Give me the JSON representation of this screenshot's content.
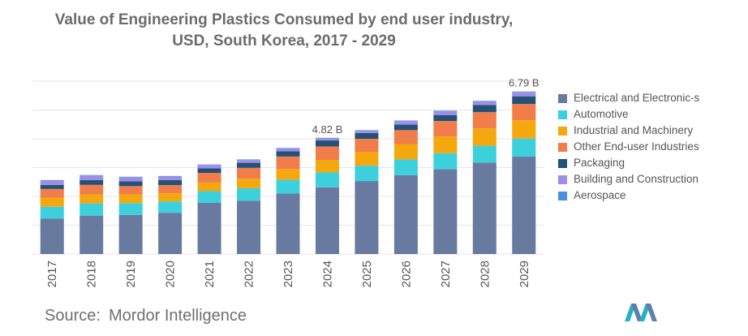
{
  "title_lines": [
    "Value of Engineering Plastics Consumed by end user industry,",
    "USD, South Korea, 2017 - 2029"
  ],
  "source": {
    "label": "Source:",
    "name": "Mordor Intelligence"
  },
  "colors": {
    "gridline": "#e6e6e6",
    "axis_text": "#555555",
    "annotation_text": "#555555"
  },
  "chart_data": {
    "type": "bar",
    "stacked": true,
    "title": "Value of Engineering Plastics Consumed by end user industry, USD, South Korea, 2017 - 2029",
    "xlabel": "",
    "ylabel": "",
    "ylim": [
      0,
      7.2
    ],
    "grid": true,
    "legend_position": "right",
    "categories": [
      "2017",
      "2018",
      "2019",
      "2020",
      "2021",
      "2022",
      "2023",
      "2024",
      "2025",
      "2026",
      "2027",
      "2028",
      "2029"
    ],
    "annotations": [
      {
        "category": "2024",
        "text": "4.82 B",
        "value": 4.82
      },
      {
        "category": "2029",
        "text": "6.79 B",
        "value": 6.79
      }
    ],
    "series": [
      {
        "name": "Electrical and Electronic-s",
        "color": "#687aa0",
        "values": [
          1.48,
          1.6,
          1.63,
          1.72,
          2.14,
          2.22,
          2.52,
          2.78,
          3.04,
          3.28,
          3.53,
          3.81,
          4.06
        ]
      },
      {
        "name": "Automotive",
        "color": "#3cd0dd",
        "values": [
          0.49,
          0.51,
          0.49,
          0.47,
          0.48,
          0.52,
          0.57,
          0.62,
          0.64,
          0.66,
          0.67,
          0.7,
          0.75
        ]
      },
      {
        "name": "Industrial and Machinery",
        "color": "#f5a80e",
        "values": [
          0.38,
          0.37,
          0.36,
          0.34,
          0.36,
          0.4,
          0.45,
          0.52,
          0.58,
          0.64,
          0.69,
          0.72,
          0.76
        ]
      },
      {
        "name": "Other End-user Industries",
        "color": "#f07d4a",
        "values": [
          0.36,
          0.4,
          0.35,
          0.34,
          0.4,
          0.45,
          0.52,
          0.56,
          0.54,
          0.58,
          0.65,
          0.68,
          0.68
        ]
      },
      {
        "name": "Packaging",
        "color": "#245277",
        "values": [
          0.17,
          0.2,
          0.2,
          0.21,
          0.19,
          0.21,
          0.22,
          0.25,
          0.24,
          0.23,
          0.25,
          0.3,
          0.32
        ]
      },
      {
        "name": "Building and Construction",
        "color": "#9d8ee8",
        "values": [
          0.18,
          0.19,
          0.17,
          0.15,
          0.14,
          0.12,
          0.12,
          0.09,
          0.1,
          0.15,
          0.16,
          0.15,
          0.18
        ]
      },
      {
        "name": "Aerospace",
        "color": "#4a90e2",
        "values": [
          0.02,
          0.02,
          0.02,
          0.02,
          0.02,
          0.02,
          0.02,
          0.02,
          0.02,
          0.02,
          0.02,
          0.02,
          0.02
        ]
      }
    ]
  }
}
